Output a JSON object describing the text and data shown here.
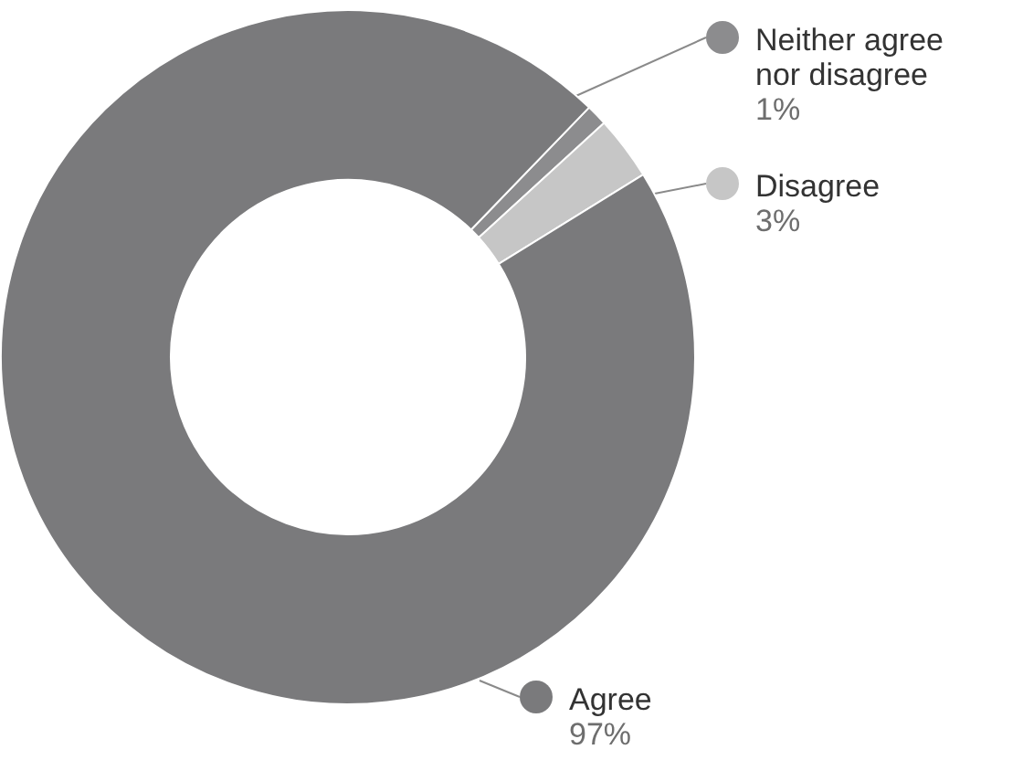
{
  "chart_data": {
    "type": "donut",
    "categories": [
      "Neither agree nor disagree",
      "Disagree",
      "Agree"
    ],
    "values": [
      1,
      3,
      97
    ],
    "colors": [
      "#8c8c8e",
      "#c6c6c6",
      "#7a7a7c"
    ],
    "value_labels": [
      "1%",
      "3%",
      "97%"
    ],
    "legend": "right"
  }
}
